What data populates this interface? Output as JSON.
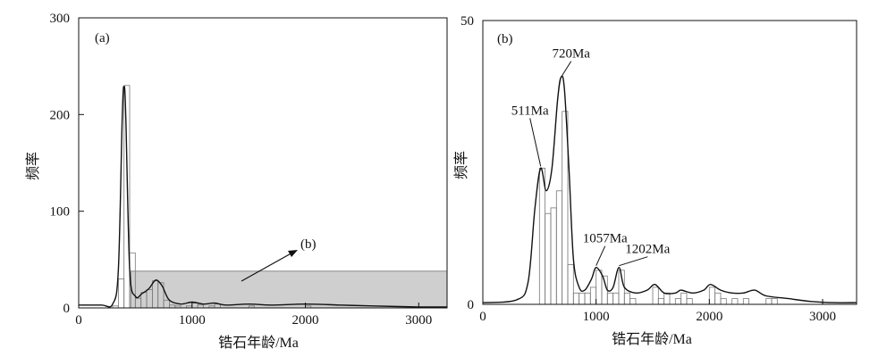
{
  "chart_data": [
    {
      "type": "bar",
      "panel_label": "(a)",
      "xlabel": "锆石年龄/Ma",
      "ylabel": "频率",
      "xlim": [
        0,
        3250
      ],
      "ylim": [
        0,
        300
      ],
      "xticks": [
        0,
        1000,
        2000,
        3000
      ],
      "yticks": [
        0,
        100,
        200,
        300
      ],
      "grid": false,
      "bin_width": 50,
      "bins": [
        {
          "x": 300,
          "y": 2
        },
        {
          "x": 350,
          "y": 30
        },
        {
          "x": 400,
          "y": 230
        },
        {
          "x": 450,
          "y": 57
        },
        {
          "x": 500,
          "y": 10
        },
        {
          "x": 550,
          "y": 16
        },
        {
          "x": 600,
          "y": 19
        },
        {
          "x": 650,
          "y": 28
        },
        {
          "x": 700,
          "y": 26
        },
        {
          "x": 750,
          "y": 8
        },
        {
          "x": 800,
          "y": 3
        },
        {
          "x": 850,
          "y": 2
        },
        {
          "x": 950,
          "y": 2
        },
        {
          "x": 1000,
          "y": 5
        },
        {
          "x": 1050,
          "y": 3
        },
        {
          "x": 1150,
          "y": 2
        },
        {
          "x": 1200,
          "y": 4
        },
        {
          "x": 1500,
          "y": 2
        },
        {
          "x": 2000,
          "y": 2
        }
      ],
      "density_curve": [
        [
          0,
          3
        ],
        [
          200,
          3
        ],
        [
          300,
          4
        ],
        [
          350,
          40
        ],
        [
          385,
          200
        ],
        [
          400,
          229
        ],
        [
          415,
          200
        ],
        [
          450,
          40
        ],
        [
          500,
          12
        ],
        [
          560,
          15
        ],
        [
          620,
          20
        ],
        [
          670,
          28
        ],
        [
          700,
          28
        ],
        [
          740,
          22
        ],
        [
          800,
          8
        ],
        [
          900,
          4
        ],
        [
          1000,
          6
        ],
        [
          1100,
          4
        ],
        [
          1200,
          5
        ],
        [
          1300,
          3
        ],
        [
          1500,
          4
        ],
        [
          1700,
          3
        ],
        [
          2000,
          4
        ],
        [
          2300,
          3
        ],
        [
          2600,
          2
        ],
        [
          3000,
          1
        ],
        [
          3250,
          1
        ]
      ],
      "inset_region": {
        "x": [
          460,
          3250
        ],
        "y": [
          0,
          38
        ]
      },
      "annotation": {
        "text": "(b)",
        "points_to": "inset region"
      }
    },
    {
      "type": "bar",
      "panel_label": "(b)",
      "xlabel": "锆石年龄/Ma",
      "ylabel": "频率",
      "xlim": [
        0,
        3300
      ],
      "ylim": [
        0,
        50
      ],
      "xticks": [
        0,
        1000,
        2000,
        3000
      ],
      "yticks": [
        0,
        50
      ],
      "grid": false,
      "bin_width": 50,
      "bins": [
        {
          "x": 500,
          "y": 24
        },
        {
          "x": 550,
          "y": 16
        },
        {
          "x": 600,
          "y": 17
        },
        {
          "x": 650,
          "y": 20
        },
        {
          "x": 700,
          "y": 34
        },
        {
          "x": 750,
          "y": 7
        },
        {
          "x": 800,
          "y": 2
        },
        {
          "x": 850,
          "y": 2
        },
        {
          "x": 900,
          "y": 2
        },
        {
          "x": 950,
          "y": 3
        },
        {
          "x": 1000,
          "y": 6
        },
        {
          "x": 1050,
          "y": 5
        },
        {
          "x": 1100,
          "y": 2
        },
        {
          "x": 1150,
          "y": 2
        },
        {
          "x": 1200,
          "y": 6
        },
        {
          "x": 1250,
          "y": 2
        },
        {
          "x": 1300,
          "y": 1
        },
        {
          "x": 1500,
          "y": 3
        },
        {
          "x": 1550,
          "y": 1
        },
        {
          "x": 1600,
          "y": 2
        },
        {
          "x": 1700,
          "y": 1
        },
        {
          "x": 1750,
          "y": 2
        },
        {
          "x": 1800,
          "y": 1
        },
        {
          "x": 2000,
          "y": 3
        },
        {
          "x": 2050,
          "y": 2
        },
        {
          "x": 2100,
          "y": 1
        },
        {
          "x": 2200,
          "y": 1
        },
        {
          "x": 2300,
          "y": 1
        },
        {
          "x": 2500,
          "y": 1
        },
        {
          "x": 2550,
          "y": 1
        }
      ],
      "density_curve": [
        [
          0,
          0.3
        ],
        [
          300,
          0.8
        ],
        [
          400,
          4
        ],
        [
          460,
          17
        ],
        [
          511,
          24
        ],
        [
          560,
          20
        ],
        [
          610,
          24
        ],
        [
          660,
          36
        ],
        [
          690,
          40
        ],
        [
          720,
          38
        ],
        [
          760,
          24
        ],
        [
          800,
          8
        ],
        [
          850,
          3
        ],
        [
          900,
          2.5
        ],
        [
          960,
          4.5
        ],
        [
          1000,
          6.5
        ],
        [
          1057,
          5
        ],
        [
          1100,
          2.5
        ],
        [
          1150,
          3
        ],
        [
          1202,
          6.5
        ],
        [
          1250,
          3
        ],
        [
          1350,
          2
        ],
        [
          1450,
          2.5
        ],
        [
          1520,
          3.5
        ],
        [
          1600,
          2
        ],
        [
          1700,
          2
        ],
        [
          1750,
          2.5
        ],
        [
          1850,
          2
        ],
        [
          1950,
          2.5
        ],
        [
          2010,
          3.5
        ],
        [
          2100,
          2.5
        ],
        [
          2200,
          2
        ],
        [
          2300,
          2
        ],
        [
          2400,
          2.5
        ],
        [
          2500,
          1.5
        ],
        [
          2700,
          1
        ],
        [
          2900,
          0.5
        ],
        [
          3100,
          0.3
        ],
        [
          3300,
          0.3
        ]
      ],
      "peak_labels": [
        {
          "text": "511Ma",
          "x": 511,
          "y": 24
        },
        {
          "text": "720Ma",
          "x": 700,
          "y": 40
        },
        {
          "text": "1057Ma",
          "x": 1000,
          "y": 6.5
        },
        {
          "text": "1202Ma",
          "x": 1202,
          "y": 6.5
        }
      ]
    }
  ]
}
